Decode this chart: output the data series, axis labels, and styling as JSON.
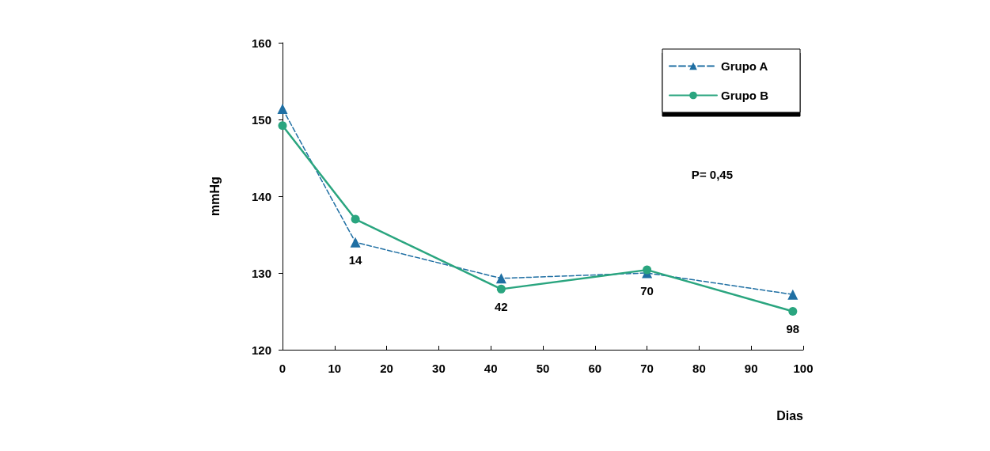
{
  "chart_data": {
    "type": "line",
    "ylabel": "mmHg",
    "xlabel": "Dias",
    "xlim": [
      0,
      100
    ],
    "xticks": [
      0,
      10,
      20,
      30,
      40,
      50,
      60,
      70,
      80,
      90,
      100
    ],
    "ylim": [
      120,
      160
    ],
    "yticks": [
      120,
      130,
      140,
      150,
      160
    ],
    "grid": false,
    "legend": "top right",
    "series": [
      {
        "name": "Grupo A",
        "color": "#1f6fa3",
        "marker": "triangle",
        "line_style": "dashed",
        "x": [
          0,
          14,
          42,
          70,
          98
        ],
        "values": [
          151.4,
          134,
          129.3,
          130,
          127.2
        ]
      },
      {
        "name": "Grupo B",
        "color": "#2aa57f",
        "marker": "circle",
        "line_style": "solid",
        "x": [
          0,
          14,
          42,
          70,
          98
        ],
        "values": [
          149.2,
          137,
          127.9,
          130.4,
          125
        ]
      }
    ],
    "annotations": [
      {
        "text": "14",
        "x": 14,
        "y": 134
      },
      {
        "text": "42",
        "x": 42,
        "y": 127.9
      },
      {
        "text": "70",
        "x": 70,
        "y": 130
      },
      {
        "text": "98",
        "x": 98,
        "y": 125
      },
      "P= 0,45"
    ]
  }
}
